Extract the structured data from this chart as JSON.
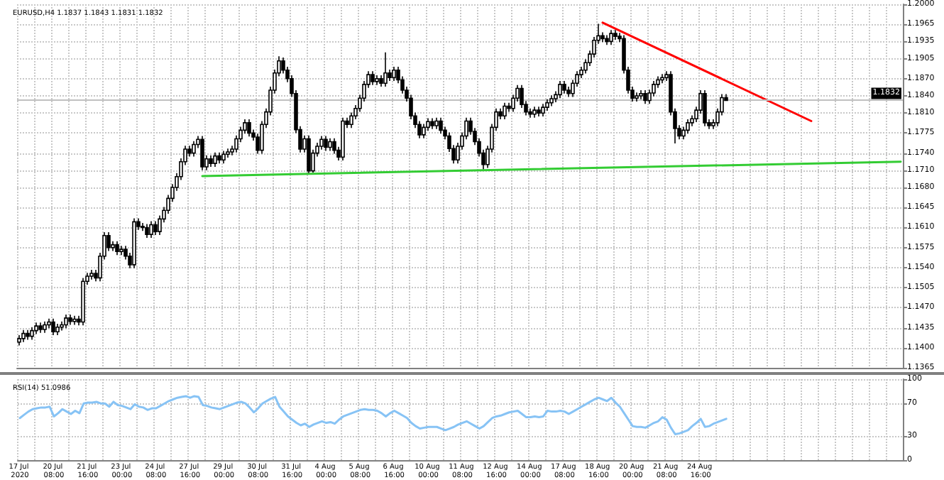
{
  "chart_data": [
    {
      "type": "candlestick",
      "title": "EURUSD,H4 1.1837 1.1843 1.1831 1.1832",
      "categories": [
        "17 Jul 2020",
        null,
        null,
        null,
        null,
        null,
        null,
        null,
        "20 Jul 08:00",
        null,
        null,
        null,
        null,
        null,
        null,
        null,
        "21 Jul 16:00",
        null,
        null,
        null,
        null,
        null,
        null,
        null,
        "23 Jul 00:00",
        null,
        null,
        null,
        null,
        null,
        null,
        null,
        "24 Jul 08:00",
        null,
        null,
        null,
        null,
        null,
        null,
        null,
        "27 Jul 16:00",
        null,
        null,
        null,
        null,
        null,
        null,
        null,
        "29 Jul 00:00",
        null,
        null,
        null,
        null,
        null,
        null,
        null,
        "30 Jul 08:00",
        null,
        null,
        null,
        null,
        null,
        null,
        null,
        "31 Jul 16:00",
        null,
        null,
        null,
        null,
        null,
        null,
        null,
        "4 Aug 00:00",
        null,
        null,
        null,
        null,
        null,
        null,
        null,
        "5 Aug 08:00",
        null,
        null,
        null,
        null,
        null,
        null,
        null,
        "6 Aug 16:00",
        null,
        null,
        null,
        null,
        null,
        null,
        null,
        "10 Aug 00:00",
        null,
        null,
        null,
        null,
        null,
        null,
        null,
        "11 Aug 08:00",
        null,
        null,
        null,
        null,
        null,
        null,
        null,
        "12 Aug 16:00",
        null,
        null,
        null,
        null,
        null,
        null,
        null,
        "14 Aug 00:00",
        null,
        null,
        null,
        null,
        null,
        null,
        null,
        "17 Aug 08:00",
        null,
        null,
        null,
        null,
        null,
        null,
        null,
        "18 Aug 16:00",
        null,
        null,
        null,
        null,
        null,
        null,
        null,
        "20 Aug 00:00",
        null,
        null,
        null,
        null,
        null,
        null,
        null,
        "21 Aug 08:00",
        null,
        null,
        null,
        null,
        null,
        null,
        null,
        "24 Aug 16:00",
        null,
        null,
        null,
        null,
        null,
        null,
        null,
        null,
        null,
        null,
        null,
        null,
        null,
        null,
        null,
        null,
        null,
        null,
        null,
        null,
        null,
        null,
        null,
        null,
        null,
        null,
        null,
        null,
        null,
        null,
        null,
        null,
        null,
        null,
        null,
        null,
        null,
        null,
        null,
        null,
        null,
        null,
        null,
        null,
        null,
        null,
        null
      ],
      "ohlc": [
        [
          1.141,
          1.1422,
          1.1404,
          1.1416
        ],
        [
          1.1416,
          1.1431,
          1.141,
          1.1425
        ],
        [
          1.1425,
          1.1431,
          1.1414,
          1.142
        ],
        [
          1.142,
          1.1436,
          1.1414,
          1.143
        ],
        [
          1.143,
          1.1444,
          1.1424,
          1.1438
        ],
        [
          1.1438,
          1.1444,
          1.1426,
          1.1432
        ],
        [
          1.1432,
          1.1446,
          1.1426,
          1.144
        ],
        [
          1.144,
          1.1451,
          1.1434,
          1.1445
        ],
        [
          1.1445,
          1.1451,
          1.1422,
          1.1428
        ],
        [
          1.1428,
          1.1442,
          1.1422,
          1.1436
        ],
        [
          1.1436,
          1.1446,
          1.143,
          1.144
        ],
        [
          1.144,
          1.1458,
          1.1434,
          1.1452
        ],
        [
          1.1452,
          1.1458,
          1.144,
          1.1446
        ],
        [
          1.1446,
          1.1456,
          1.144,
          1.145
        ],
        [
          1.145,
          1.1456,
          1.1439,
          1.1445
        ],
        [
          1.1445,
          1.1522,
          1.1439,
          1.1516
        ],
        [
          1.1516,
          1.1531,
          1.151,
          1.1525
        ],
        [
          1.1525,
          1.1536,
          1.1519,
          1.153
        ],
        [
          1.153,
          1.1536,
          1.1516,
          1.1522
        ],
        [
          1.1522,
          1.1566,
          1.1516,
          1.156
        ],
        [
          1.156,
          1.1602,
          1.1554,
          1.1596
        ],
        [
          1.1596,
          1.1602,
          1.1569,
          1.1575
        ],
        [
          1.1575,
          1.1586,
          1.1569,
          1.158
        ],
        [
          1.158,
          1.1586,
          1.1562,
          1.1568
        ],
        [
          1.1568,
          1.1578,
          1.1562,
          1.1572
        ],
        [
          1.1572,
          1.1578,
          1.1554,
          1.156
        ],
        [
          1.156,
          1.1566,
          1.1539,
          1.1545
        ],
        [
          1.1545,
          1.1626,
          1.1539,
          1.162
        ],
        [
          1.162,
          1.1626,
          1.1606,
          1.1612
        ],
        [
          1.1612,
          1.1618,
          1.1604,
          1.161
        ],
        [
          1.161,
          1.1616,
          1.1592,
          1.1598
        ],
        [
          1.1598,
          1.1621,
          1.1592,
          1.1615
        ],
        [
          1.1615,
          1.1621,
          1.1597,
          1.1603
        ],
        [
          1.1603,
          1.1631,
          1.1597,
          1.1625
        ],
        [
          1.1625,
          1.1646,
          1.1619,
          1.164
        ],
        [
          1.164,
          1.1667,
          1.1634,
          1.1661
        ],
        [
          1.1661,
          1.1686,
          1.1655,
          1.168
        ],
        [
          1.168,
          1.1705,
          1.1674,
          1.1699
        ],
        [
          1.1699,
          1.1731,
          1.1693,
          1.1725
        ],
        [
          1.1725,
          1.1753,
          1.1719,
          1.1747
        ],
        [
          1.1747,
          1.1753,
          1.1734,
          1.174
        ],
        [
          1.174,
          1.1761,
          1.1734,
          1.1755
        ],
        [
          1.1755,
          1.177,
          1.1749,
          1.1764
        ],
        [
          1.1764,
          1.177,
          1.171,
          1.1716
        ],
        [
          1.1716,
          1.1736,
          1.171,
          1.173
        ],
        [
          1.173,
          1.1736,
          1.1716,
          1.1722
        ],
        [
          1.1722,
          1.1741,
          1.1716,
          1.1735
        ],
        [
          1.1735,
          1.1741,
          1.1722,
          1.1728
        ],
        [
          1.1728,
          1.1744,
          1.1722,
          1.1738
        ],
        [
          1.1738,
          1.1748,
          1.1732,
          1.1742
        ],
        [
          1.1742,
          1.1753,
          1.1736,
          1.1747
        ],
        [
          1.1747,
          1.1771,
          1.1741,
          1.1765
        ],
        [
          1.1765,
          1.1786,
          1.1759,
          1.178
        ],
        [
          1.178,
          1.1799,
          1.1774,
          1.1793
        ],
        [
          1.1793,
          1.1799,
          1.1769,
          1.1775
        ],
        [
          1.1775,
          1.1781,
          1.1762,
          1.1768
        ],
        [
          1.1768,
          1.1774,
          1.1739,
          1.1745
        ],
        [
          1.1745,
          1.1796,
          1.1739,
          1.179
        ],
        [
          1.179,
          1.1818,
          1.1784,
          1.1812
        ],
        [
          1.1812,
          1.1856,
          1.1806,
          1.185
        ],
        [
          1.185,
          1.1886,
          1.1844,
          1.188
        ],
        [
          1.188,
          1.1909,
          1.1874,
          1.1901
        ],
        [
          1.1901,
          1.1907,
          1.1879,
          1.1885
        ],
        [
          1.1885,
          1.1891,
          1.1864,
          1.187
        ],
        [
          1.187,
          1.1876,
          1.1838,
          1.1844
        ],
        [
          1.1844,
          1.185,
          1.1775,
          1.1781
        ],
        [
          1.1781,
          1.1787,
          1.1741,
          1.1747
        ],
        [
          1.1747,
          1.1771,
          1.1741,
          1.1765
        ],
        [
          1.1765,
          1.1771,
          1.1705,
          1.1709
        ],
        [
          1.1709,
          1.1746,
          1.1706,
          1.174
        ],
        [
          1.174,
          1.1758,
          1.1734,
          1.1752
        ],
        [
          1.1752,
          1.177,
          1.1746,
          1.1764
        ],
        [
          1.1764,
          1.177,
          1.1744,
          1.175
        ],
        [
          1.175,
          1.1766,
          1.1744,
          1.176
        ],
        [
          1.176,
          1.1766,
          1.1739,
          1.1745
        ],
        [
          1.1745,
          1.1751,
          1.1727,
          1.1733
        ],
        [
          1.1733,
          1.1802,
          1.1727,
          1.1796
        ],
        [
          1.1796,
          1.1802,
          1.1784,
          1.179
        ],
        [
          1.179,
          1.1811,
          1.1784,
          1.1805
        ],
        [
          1.1805,
          1.1824,
          1.1799,
          1.1818
        ],
        [
          1.1818,
          1.1842,
          1.1812,
          1.1836
        ],
        [
          1.1836,
          1.1866,
          1.183,
          1.186
        ],
        [
          1.186,
          1.1883,
          1.1854,
          1.1877
        ],
        [
          1.1877,
          1.1883,
          1.1859,
          1.1865
        ],
        [
          1.1865,
          1.1876,
          1.1859,
          1.187
        ],
        [
          1.187,
          1.1876,
          1.1856,
          1.1862
        ],
        [
          1.1862,
          1.1916,
          1.1856,
          1.188
        ],
        [
          1.188,
          1.1886,
          1.1866,
          1.1872
        ],
        [
          1.1872,
          1.1891,
          1.1866,
          1.1885
        ],
        [
          1.1885,
          1.1891,
          1.1862,
          1.1868
        ],
        [
          1.1868,
          1.1874,
          1.1844,
          1.185
        ],
        [
          1.185,
          1.1856,
          1.183,
          1.1836
        ],
        [
          1.1836,
          1.1842,
          1.1799,
          1.1805
        ],
        [
          1.1805,
          1.1811,
          1.1784,
          1.179
        ],
        [
          1.179,
          1.1796,
          1.1766,
          1.1772
        ],
        [
          1.1772,
          1.1791,
          1.1766,
          1.1785
        ],
        [
          1.1785,
          1.1801,
          1.1779,
          1.1795
        ],
        [
          1.1795,
          1.1801,
          1.1782,
          1.1788
        ],
        [
          1.1788,
          1.1802,
          1.1782,
          1.1796
        ],
        [
          1.1796,
          1.1802,
          1.1774,
          1.178
        ],
        [
          1.178,
          1.1786,
          1.1764,
          1.177
        ],
        [
          1.177,
          1.1776,
          1.1742,
          1.1748
        ],
        [
          1.1748,
          1.1754,
          1.1722,
          1.1728
        ],
        [
          1.1728,
          1.1758,
          1.1722,
          1.1752
        ],
        [
          1.1752,
          1.1776,
          1.1746,
          1.177
        ],
        [
          1.177,
          1.1802,
          1.1764,
          1.1796
        ],
        [
          1.1796,
          1.1802,
          1.1772,
          1.1778
        ],
        [
          1.1778,
          1.1784,
          1.1754,
          1.176
        ],
        [
          1.176,
          1.1766,
          1.1734,
          1.174
        ],
        [
          1.174,
          1.1746,
          1.1712,
          1.172
        ],
        [
          1.172,
          1.1753,
          1.1714,
          1.1747
        ],
        [
          1.1747,
          1.1791,
          1.1741,
          1.1785
        ],
        [
          1.1785,
          1.1818,
          1.1779,
          1.1812
        ],
        [
          1.1812,
          1.1818,
          1.1799,
          1.1805
        ],
        [
          1.1805,
          1.1828,
          1.1799,
          1.1822
        ],
        [
          1.1822,
          1.1828,
          1.1812,
          1.1818
        ],
        [
          1.1818,
          1.1842,
          1.1812,
          1.1836
        ],
        [
          1.1836,
          1.1859,
          1.183,
          1.1853
        ],
        [
          1.1853,
          1.1859,
          1.1819,
          1.1825
        ],
        [
          1.1825,
          1.1831,
          1.1806,
          1.1812
        ],
        [
          1.1812,
          1.1818,
          1.1802,
          1.1808
        ],
        [
          1.1808,
          1.1821,
          1.1802,
          1.1815
        ],
        [
          1.1815,
          1.1821,
          1.1804,
          1.181
        ],
        [
          1.181,
          1.1826,
          1.1804,
          1.182
        ],
        [
          1.182,
          1.1834,
          1.1814,
          1.1828
        ],
        [
          1.1828,
          1.1841,
          1.1822,
          1.1835
        ],
        [
          1.1835,
          1.1848,
          1.1829,
          1.1842
        ],
        [
          1.1842,
          1.1866,
          1.1836,
          1.186
        ],
        [
          1.186,
          1.1866,
          1.1844,
          1.185
        ],
        [
          1.185,
          1.1856,
          1.1838,
          1.1844
        ],
        [
          1.1844,
          1.1868,
          1.1838,
          1.1862
        ],
        [
          1.1862,
          1.1883,
          1.1856,
          1.1877
        ],
        [
          1.1877,
          1.1891,
          1.1871,
          1.1885
        ],
        [
          1.1885,
          1.1904,
          1.1879,
          1.1898
        ],
        [
          1.1898,
          1.1919,
          1.1892,
          1.1913
        ],
        [
          1.1913,
          1.1943,
          1.1907,
          1.1937
        ],
        [
          1.1937,
          1.1966,
          1.1931,
          1.1945
        ],
        [
          1.1945,
          1.1951,
          1.1934,
          1.194
        ],
        [
          1.194,
          1.1946,
          1.1929,
          1.1935
        ],
        [
          1.1935,
          1.1955,
          1.1929,
          1.1949
        ],
        [
          1.1949,
          1.1955,
          1.1938,
          1.1944
        ],
        [
          1.1944,
          1.195,
          1.1934,
          1.194
        ],
        [
          1.194,
          1.1946,
          1.1879,
          1.1885
        ],
        [
          1.1885,
          1.1891,
          1.1844,
          1.185
        ],
        [
          1.185,
          1.1856,
          1.183,
          1.1836
        ],
        [
          1.1836,
          1.1846,
          1.183,
          1.184
        ],
        [
          1.184,
          1.185,
          1.1834,
          1.1844
        ],
        [
          1.1844,
          1.185,
          1.1826,
          1.1832
        ],
        [
          1.1832,
          1.1851,
          1.1826,
          1.1845
        ],
        [
          1.1845,
          1.1866,
          1.1839,
          1.186
        ],
        [
          1.186,
          1.1874,
          1.1854,
          1.1868
        ],
        [
          1.1868,
          1.1878,
          1.1862,
          1.1872
        ],
        [
          1.1872,
          1.1883,
          1.1866,
          1.1877
        ],
        [
          1.1877,
          1.1883,
          1.1806,
          1.1812
        ],
        [
          1.1812,
          1.1818,
          1.1757,
          1.1783
        ],
        [
          1.1783,
          1.1789,
          1.1764,
          1.177
        ],
        [
          1.177,
          1.1786,
          1.1764,
          1.178
        ],
        [
          1.178,
          1.1799,
          1.1774,
          1.1793
        ],
        [
          1.1793,
          1.1806,
          1.1787,
          1.18
        ],
        [
          1.18,
          1.1821,
          1.1794,
          1.1815
        ],
        [
          1.1815,
          1.185,
          1.1809,
          1.1844
        ],
        [
          1.1844,
          1.185,
          1.1787,
          1.1793
        ],
        [
          1.1793,
          1.1799,
          1.1782,
          1.1788
        ],
        [
          1.1788,
          1.1799,
          1.1782,
          1.1793
        ],
        [
          1.1793,
          1.1818,
          1.1787,
          1.1812
        ],
        [
          1.1812,
          1.1843,
          1.1806,
          1.1837
        ],
        [
          1.1837,
          1.1843,
          1.1831,
          1.1832
        ],
        null,
        null,
        null,
        null,
        null,
        null,
        null,
        null,
        null,
        null,
        null,
        null,
        null,
        null,
        null,
        null,
        null,
        null,
        null,
        null,
        null,
        null,
        null,
        null,
        null,
        null,
        null,
        null,
        null,
        null,
        null,
        null,
        null,
        null,
        null,
        null,
        null,
        null,
        null,
        null,
        null
      ],
      "series": [
        {
          "type": "line",
          "color": "#33cc33",
          "values": [
            null,
            null,
            null,
            null,
            null,
            null,
            null,
            null,
            null,
            null,
            null,
            null,
            null,
            null,
            null,
            null,
            null,
            null,
            null,
            null,
            null,
            null,
            null,
            null,
            null,
            null,
            null,
            null,
            null,
            null,
            null,
            null,
            null,
            null,
            null,
            null,
            null,
            null,
            null,
            null,
            null,
            null,
            null,
            1.17,
            null,
            null,
            null,
            null,
            null,
            null,
            null,
            null,
            null,
            null,
            null,
            null,
            null,
            null,
            null,
            null,
            null,
            null,
            null,
            null,
            null,
            null,
            null,
            null,
            null,
            null,
            null,
            null,
            null,
            null,
            null,
            null,
            null,
            null,
            null,
            null,
            null,
            null,
            null,
            null,
            null,
            null,
            null,
            null,
            null,
            null,
            null,
            null,
            null,
            null,
            null,
            null,
            null,
            null,
            null,
            null,
            null,
            null,
            null,
            null,
            null,
            null,
            null,
            null,
            null,
            null,
            null,
            null,
            null,
            null,
            null,
            null,
            null,
            null,
            null,
            null,
            null,
            null,
            null,
            null,
            null,
            null,
            null,
            null,
            null,
            null,
            null,
            null,
            null,
            null,
            null,
            null,
            null,
            null,
            null,
            null,
            null,
            null,
            null,
            null,
            null,
            null,
            null,
            null,
            null,
            null,
            null,
            null,
            null,
            null,
            null,
            null,
            null,
            null,
            null,
            null,
            null,
            null,
            null,
            null,
            null,
            null,
            null,
            null,
            null,
            null,
            null,
            null,
            null,
            null,
            null,
            null,
            null,
            null,
            null,
            null,
            null,
            null,
            null,
            null,
            null,
            null,
            null,
            null,
            null,
            null,
            null,
            null,
            null,
            null,
            null,
            null,
            null,
            null,
            null,
            null,
            null,
            null,
            null,
            null,
            null,
            null,
            null,
            1.1725
          ]
        },
        {
          "type": "line",
          "color": "#ff0000",
          "values": [
            null,
            null,
            null,
            null,
            null,
            null,
            null,
            null,
            null,
            null,
            null,
            null,
            null,
            null,
            null,
            null,
            null,
            null,
            null,
            null,
            null,
            null,
            null,
            null,
            null,
            null,
            null,
            null,
            null,
            null,
            null,
            null,
            null,
            null,
            null,
            null,
            null,
            null,
            null,
            null,
            null,
            null,
            null,
            null,
            null,
            null,
            null,
            null,
            null,
            null,
            null,
            null,
            null,
            null,
            null,
            null,
            null,
            null,
            null,
            null,
            null,
            null,
            null,
            null,
            null,
            null,
            null,
            null,
            null,
            null,
            null,
            null,
            null,
            null,
            null,
            null,
            null,
            null,
            null,
            null,
            null,
            null,
            null,
            null,
            null,
            null,
            null,
            null,
            null,
            null,
            null,
            null,
            null,
            null,
            null,
            null,
            null,
            null,
            null,
            null,
            null,
            null,
            null,
            null,
            null,
            null,
            null,
            null,
            null,
            null,
            null,
            null,
            null,
            null,
            null,
            null,
            null,
            null,
            null,
            null,
            null,
            null,
            null,
            null,
            null,
            null,
            null,
            null,
            null,
            null,
            null,
            null,
            null,
            null,
            null,
            null,
            null,
            1.1968,
            null,
            null,
            null,
            null,
            null,
            null,
            null,
            null,
            null,
            null,
            null,
            null,
            null,
            null,
            null,
            null,
            null,
            null,
            null,
            null,
            null,
            null,
            null,
            null,
            null,
            null,
            null,
            null,
            null,
            null,
            null,
            null,
            null,
            null,
            null,
            null,
            null,
            null,
            null,
            null,
            null,
            null,
            null,
            null,
            null,
            null,
            null,
            null,
            1.1796,
            null,
            null,
            null,
            null,
            null,
            null,
            null,
            null,
            null,
            null,
            null,
            null,
            null,
            null,
            null,
            null,
            null,
            null,
            null,
            null,
            null
          ]
        }
      ],
      "ylim": [
        1.1365,
        1.2
      ],
      "yticks": [
        {
          "value": 1.2,
          "label": "1.2000"
        },
        {
          "value": 1.1965,
          "label": "1.1965"
        },
        {
          "value": 1.1935,
          "label": "1.1935"
        },
        {
          "value": 1.1905,
          "label": "1.1905"
        },
        {
          "value": 1.187,
          "label": "1.1870"
        },
        {
          "value": 1.184,
          "label": "1.1840"
        },
        {
          "value": 1.181,
          "label": "1.1810"
        },
        {
          "value": 1.1775,
          "label": "1.1775"
        },
        {
          "value": 1.174,
          "label": "1.1740"
        },
        {
          "value": 1.171,
          "label": "1.1710"
        },
        {
          "value": 1.168,
          "label": "1.1680"
        },
        {
          "value": 1.1645,
          "label": "1.1645"
        },
        {
          "value": 1.161,
          "label": "1.1610"
        },
        {
          "value": 1.1575,
          "label": "1.1575"
        },
        {
          "value": 1.154,
          "label": "1.1540"
        },
        {
          "value": 1.1505,
          "label": "1.1505"
        },
        {
          "value": 1.147,
          "label": "1.1470"
        },
        {
          "value": 1.1435,
          "label": "1.1435"
        },
        {
          "value": 1.14,
          "label": "1.1400"
        },
        {
          "value": 1.1365,
          "label": "1.1365"
        }
      ],
      "ref_lines": [
        {
          "axis": "y",
          "value": 1.1832,
          "label": "1.1832",
          "color": "#c0c0c0"
        }
      ],
      "grid": true,
      "tick_labels": "y",
      "marker": "none"
    },
    {
      "type": "line",
      "title": "RSI(14) 51.0986",
      "categories": [
        "17 Jul 2020",
        null,
        null,
        null,
        null,
        null,
        null,
        null,
        "20 Jul 08:00",
        null,
        null,
        null,
        null,
        null,
        null,
        null,
        "21 Jul 16:00",
        null,
        null,
        null,
        null,
        null,
        null,
        null,
        "23 Jul 00:00",
        null,
        null,
        null,
        null,
        null,
        null,
        null,
        "24 Jul 08:00",
        null,
        null,
        null,
        null,
        null,
        null,
        null,
        "27 Jul 16:00",
        null,
        null,
        null,
        null,
        null,
        null,
        null,
        "29 Jul 00:00",
        null,
        null,
        null,
        null,
        null,
        null,
        null,
        "30 Jul 08:00",
        null,
        null,
        null,
        null,
        null,
        null,
        null,
        "31 Jul 16:00",
        null,
        null,
        null,
        null,
        null,
        null,
        null,
        "4 Aug 00:00",
        null,
        null,
        null,
        null,
        null,
        null,
        null,
        "5 Aug 08:00",
        null,
        null,
        null,
        null,
        null,
        null,
        null,
        "6 Aug 16:00",
        null,
        null,
        null,
        null,
        null,
        null,
        null,
        "10 Aug 00:00",
        null,
        null,
        null,
        null,
        null,
        null,
        null,
        "11 Aug 08:00",
        null,
        null,
        null,
        null,
        null,
        null,
        null,
        "12 Aug 16:00",
        null,
        null,
        null,
        null,
        null,
        null,
        null,
        "14 Aug 00:00",
        null,
        null,
        null,
        null,
        null,
        null,
        null,
        "17 Aug 08:00",
        null,
        null,
        null,
        null,
        null,
        null,
        null,
        "18 Aug 16:00",
        null,
        null,
        null,
        null,
        null,
        null,
        null,
        "20 Aug 00:00",
        null,
        null,
        null,
        null,
        null,
        null,
        null,
        "21 Aug 08:00",
        null,
        null,
        null,
        null,
        null,
        null,
        null,
        "24 Aug 16:00",
        null,
        null,
        null,
        null,
        null,
        null,
        null,
        null,
        null,
        null,
        null,
        null,
        null,
        null,
        null,
        null,
        null,
        null,
        null,
        null,
        null,
        null,
        null,
        null,
        null,
        null,
        null,
        null,
        null,
        null,
        null,
        null,
        null,
        null,
        null,
        null,
        null,
        null,
        null,
        null,
        null,
        null,
        null,
        null,
        null,
        null,
        null
      ],
      "series": [
        {
          "color": "#87c3f5",
          "values": [
            52,
            56,
            60,
            63,
            64,
            65,
            65,
            66,
            54,
            58,
            63,
            60,
            57,
            61,
            58,
            70,
            71,
            71,
            72,
            70,
            70,
            66,
            72,
            68,
            67,
            65,
            63,
            69,
            66,
            65,
            62,
            64,
            64,
            67,
            70,
            73,
            75,
            77,
            78,
            79,
            77,
            79,
            78,
            68,
            67,
            65,
            64,
            63,
            65,
            67,
            69,
            71,
            72,
            70,
            65,
            59,
            64,
            70,
            73,
            76,
            78,
            66,
            60,
            54,
            50,
            46,
            43,
            45,
            41,
            44,
            46,
            48,
            46,
            47,
            45,
            50,
            54,
            56,
            58,
            60,
            62,
            63,
            62,
            62,
            61,
            58,
            54,
            58,
            61,
            58,
            55,
            52,
            46,
            42,
            39,
            40,
            41,
            41,
            41,
            39,
            37,
            39,
            41,
            44,
            46,
            48,
            45,
            42,
            39,
            42,
            47,
            52,
            54,
            55,
            57,
            59,
            60,
            61,
            57,
            53,
            53,
            54,
            53,
            54,
            61,
            60,
            60,
            61,
            60,
            57,
            60,
            63,
            66,
            69,
            72,
            75,
            77,
            75,
            73,
            77,
            71,
            66,
            58,
            50,
            42,
            41,
            41,
            40,
            43,
            46,
            48,
            53,
            50,
            40,
            32,
            33,
            35,
            37,
            42,
            46,
            51,
            41,
            42,
            45,
            47,
            49,
            51,
            null,
            null,
            null,
            null,
            null,
            null,
            null,
            null,
            null,
            null,
            null,
            null,
            null,
            null,
            null,
            null,
            null,
            null,
            null,
            null,
            null,
            null,
            null,
            null,
            null,
            null,
            null,
            null,
            null,
            null,
            null,
            null,
            null,
            null,
            null,
            null,
            null,
            null,
            null,
            null,
            null
          ]
        }
      ],
      "ylim": [
        0,
        100
      ],
      "yticks": [
        0,
        30,
        70,
        100
      ],
      "grid": true,
      "marker": "none"
    }
  ]
}
